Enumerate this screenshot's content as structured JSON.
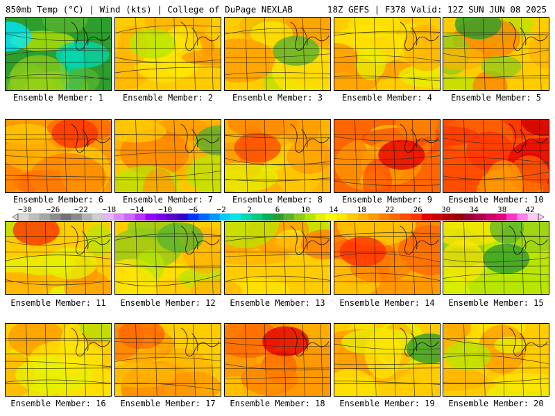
{
  "header": {
    "left": "850mb Temp (°C) | Wind (kts) | College of DuPage NEXLAB",
    "right": "18Z GEFS | F378 Valid: 12Z SUN JUN 08 2025"
  },
  "colorbar": {
    "ticks": [
      "-30",
      "-26",
      "-22",
      "-18",
      "-14",
      "-10",
      "-6",
      "-2",
      "2",
      "6",
      "10",
      "14",
      "18",
      "22",
      "26",
      "30",
      "34",
      "38",
      "42"
    ],
    "colors": [
      "#d9d9d9",
      "#bfbfbf",
      "#a6a6a6",
      "#8c8c8c",
      "#737373",
      "#8a8a8a",
      "#b3b3b3",
      "#cfcfcf",
      "#e6b3ff",
      "#d98cff",
      "#cc66ff",
      "#b833ff",
      "#9900ff",
      "#7a00e6",
      "#5c00cc",
      "#3300cc",
      "#0033ff",
      "#0066ff",
      "#0099ff",
      "#00ccff",
      "#00e6e6",
      "#00d9b3",
      "#00cc80",
      "#00b359",
      "#2d9e2d",
      "#59b32d",
      "#8ccc1a",
      "#b8e600",
      "#e6f200",
      "#ffff00",
      "#ffe600",
      "#ffcc00",
      "#ffb300",
      "#ff9900",
      "#ff8000",
      "#ff6600",
      "#ff4d00",
      "#ff3300",
      "#e60000",
      "#cc0000",
      "#b30000",
      "#990000",
      "#990033",
      "#b3004d",
      "#cc0066",
      "#e6007a",
      "#ff33cc",
      "#ff80e6",
      "#ffccf2"
    ]
  },
  "members": [
    {
      "label": "Ensemble Member: 1",
      "palette": [
        "#2d9e2d",
        "#59b32d",
        "#8ccc1a",
        "#b8e600",
        "#00d9b3"
      ],
      "accent": "#00e6ff"
    },
    {
      "label": "Ensemble Member: 2",
      "palette": [
        "#ffcc00",
        "#ffb300",
        "#e6f200",
        "#ffe600",
        "#ff9900"
      ],
      "accent": "#b8e600"
    },
    {
      "label": "Ensemble Member: 3",
      "palette": [
        "#ffcc00",
        "#ffe600",
        "#b8e600",
        "#ffb300",
        "#ff9900"
      ],
      "accent": "#59b32d"
    },
    {
      "label": "Ensemble Member: 4",
      "palette": [
        "#ffcc00",
        "#ffe600",
        "#ffb300",
        "#ff9900",
        "#e6f200"
      ],
      "accent": "#ff9900"
    },
    {
      "label": "Ensemble Member: 5",
      "palette": [
        "#ffcc00",
        "#ffb300",
        "#b8e600",
        "#ff8000",
        "#8ccc1a"
      ],
      "accent": "#2d9e2d"
    },
    {
      "label": "Ensemble Member: 6",
      "palette": [
        "#ff9900",
        "#ff8000",
        "#ffb300",
        "#ff6600",
        "#ffcc00"
      ],
      "accent": "#ff3300"
    },
    {
      "label": "Ensemble Member: 7",
      "palette": [
        "#ffb300",
        "#ffcc00",
        "#ff9900",
        "#ff8000",
        "#b8e600"
      ],
      "accent": "#59b32d"
    },
    {
      "label": "Ensemble Member: 8",
      "palette": [
        "#ffb300",
        "#ff9900",
        "#ffcc00",
        "#ff8000",
        "#e6f200"
      ],
      "accent": "#ff4d00"
    },
    {
      "label": "Ensemble Member: 9",
      "palette": [
        "#ff6600",
        "#ff4d00",
        "#ff8000",
        "#ff9900",
        "#ffcc00"
      ],
      "accent": "#e60000"
    },
    {
      "label": "Ensemble Member: 10",
      "palette": [
        "#ff4d00",
        "#ff3300",
        "#e60000",
        "#ff6600",
        "#ff9900"
      ],
      "accent": "#cc0000"
    },
    {
      "label": "Ensemble Member: 11",
      "palette": [
        "#ffcc00",
        "#e6f200",
        "#b8e600",
        "#ffb300",
        "#ff9900"
      ],
      "accent": "#ff3300"
    },
    {
      "label": "Ensemble Member: 12",
      "palette": [
        "#ffcc00",
        "#ffe600",
        "#b8e600",
        "#8ccc1a",
        "#ffb300"
      ],
      "accent": "#59b32d"
    },
    {
      "label": "Ensemble Member: 13",
      "palette": [
        "#ffcc00",
        "#ffb300",
        "#ff9900",
        "#ffe600",
        "#b8e600"
      ],
      "accent": "#ff8000"
    },
    {
      "label": "Ensemble Member: 14",
      "palette": [
        "#ff9900",
        "#ff8000",
        "#ffb300",
        "#ff6600",
        "#ffcc00"
      ],
      "accent": "#ff3300"
    },
    {
      "label": "Ensemble Member: 15",
      "palette": [
        "#b8e600",
        "#e6f200",
        "#8ccc1a",
        "#ffe600",
        "#59b32d"
      ],
      "accent": "#2d9e2d"
    },
    {
      "label": "Ensemble Member: 16",
      "palette": [
        "#ffcc00",
        "#ffe600",
        "#ffb300",
        "#e6f200",
        "#ff9900"
      ],
      "accent": "#b8e600"
    },
    {
      "label": "Ensemble Member: 17",
      "palette": [
        "#ffcc00",
        "#ffb300",
        "#ffe600",
        "#ff9900",
        "#ff8000"
      ],
      "accent": "#ff6600"
    },
    {
      "label": "Ensemble Member: 18",
      "palette": [
        "#ff9900",
        "#ffb300",
        "#ff8000",
        "#ffcc00",
        "#ff6600"
      ],
      "accent": "#e60000"
    },
    {
      "label": "Ensemble Member: 19",
      "palette": [
        "#ffcc00",
        "#ffe600",
        "#ffb300",
        "#ff9900",
        "#e6f200"
      ],
      "accent": "#2d9e2d"
    },
    {
      "label": "Ensemble Member: 20",
      "palette": [
        "#ffcc00",
        "#ffb300",
        "#ffe600",
        "#ff9900",
        "#e6f200"
      ],
      "accent": "#b8e600"
    }
  ]
}
